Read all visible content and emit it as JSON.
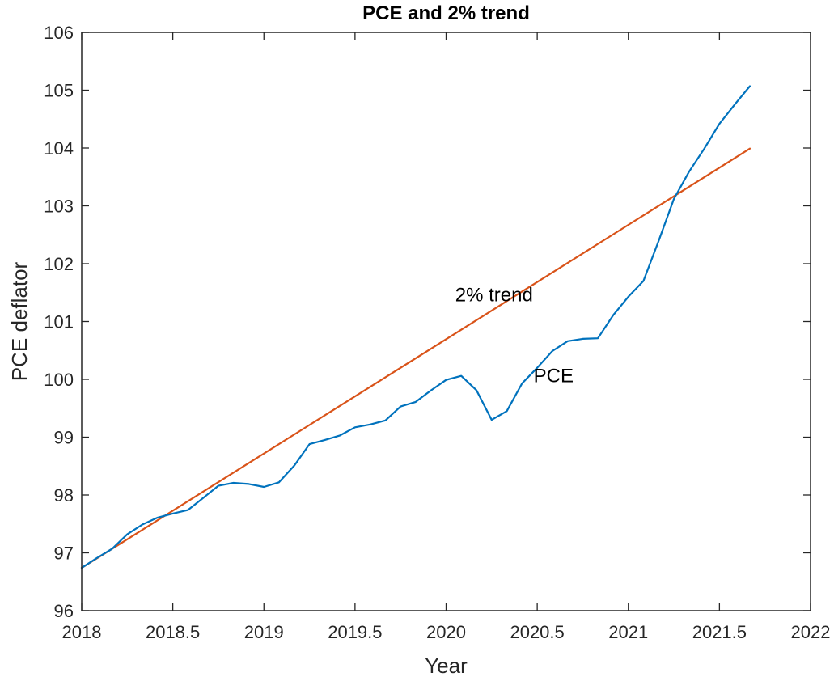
{
  "chart_data": {
    "type": "line",
    "title": "PCE and 2% trend",
    "xlabel": "Year",
    "ylabel": "PCE deflator",
    "xlim": [
      2018,
      2022
    ],
    "ylim": [
      96,
      106
    ],
    "xticks": [
      2018,
      2018.5,
      2019,
      2019.5,
      2020,
      2020.5,
      2021,
      2021.5,
      2022
    ],
    "xtick_labels": [
      "2018",
      "2018.5",
      "2019",
      "2019.5",
      "2020",
      "2020.5",
      "2021",
      "2021.5",
      "2022"
    ],
    "yticks": [
      96,
      97,
      98,
      99,
      100,
      101,
      102,
      103,
      104,
      105,
      106
    ],
    "ytick_labels": [
      "96",
      "97",
      "98",
      "99",
      "100",
      "101",
      "102",
      "103",
      "104",
      "105",
      "106"
    ],
    "grid": false,
    "box": true,
    "series": [
      {
        "name": "PCE",
        "color": "#0072BD",
        "x": [
          2018.0,
          2018.083,
          2018.167,
          2018.25,
          2018.333,
          2018.417,
          2018.5,
          2018.583,
          2018.667,
          2018.75,
          2018.833,
          2018.917,
          2019.0,
          2019.083,
          2019.167,
          2019.25,
          2019.333,
          2019.417,
          2019.5,
          2019.583,
          2019.667,
          2019.75,
          2019.833,
          2019.917,
          2020.0,
          2020.083,
          2020.167,
          2020.25,
          2020.333,
          2020.417,
          2020.5,
          2020.583,
          2020.667,
          2020.75,
          2020.833,
          2020.917,
          2021.0,
          2021.083,
          2021.167,
          2021.25,
          2021.333,
          2021.417,
          2021.5,
          2021.583,
          2021.667
        ],
        "y": [
          96.74,
          96.91,
          97.07,
          97.32,
          97.49,
          97.61,
          97.68,
          97.74,
          97.95,
          98.16,
          98.21,
          98.19,
          98.14,
          98.22,
          98.51,
          98.88,
          98.95,
          99.03,
          99.17,
          99.22,
          99.29,
          99.53,
          99.61,
          99.81,
          99.99,
          100.06,
          99.81,
          99.3,
          99.45,
          99.93,
          100.2,
          100.49,
          100.66,
          100.7,
          100.71,
          101.11,
          101.43,
          101.7,
          102.4,
          103.12,
          103.59,
          103.99,
          104.42,
          104.75,
          105.07
        ]
      },
      {
        "name": "2% trend",
        "color": "#D95319",
        "x": [
          2018.0,
          2021.667
        ],
        "y": [
          96.74,
          103.99
        ]
      }
    ],
    "annotations": [
      {
        "text": "2% trend",
        "x": 2020.05,
        "y": 101.35
      },
      {
        "text": "PCE",
        "x": 2020.48,
        "y": 99.95
      }
    ]
  }
}
